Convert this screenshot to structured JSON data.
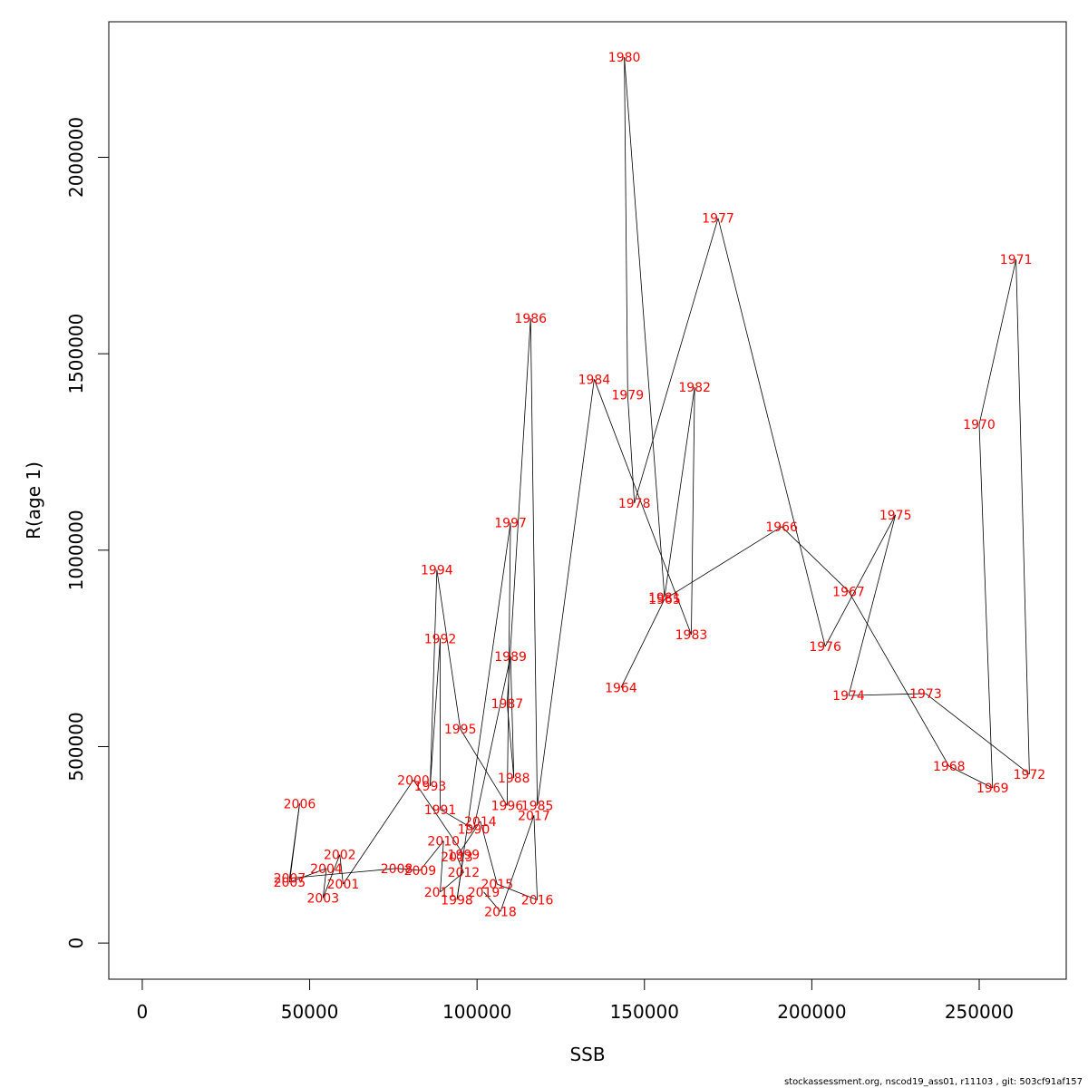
{
  "chart_data": {
    "type": "line",
    "xlabel": "SSB",
    "ylabel": "R(age 1)",
    "xlim": [
      -10000,
      276000
    ],
    "ylim": [
      -92000,
      2345000
    ],
    "x_ticks": [
      0,
      50000,
      100000,
      150000,
      200000,
      250000
    ],
    "y_ticks": [
      0,
      500000,
      1000000,
      1500000,
      2000000
    ],
    "point_label_color": "#ff0000",
    "line_color": "#000000",
    "points": [
      {
        "year": "1964",
        "x": 143000,
        "y": 650000
      },
      {
        "year": "1965",
        "x": 156000,
        "y": 875000
      },
      {
        "year": "1966",
        "x": 191000,
        "y": 1060000
      },
      {
        "year": "1967",
        "x": 211000,
        "y": 895000
      },
      {
        "year": "1968",
        "x": 241000,
        "y": 450000
      },
      {
        "year": "1969",
        "x": 254000,
        "y": 395000
      },
      {
        "year": "1970",
        "x": 250000,
        "y": 1320000
      },
      {
        "year": "1971",
        "x": 261000,
        "y": 1740000
      },
      {
        "year": "1972",
        "x": 265000,
        "y": 430000
      },
      {
        "year": "1973",
        "x": 234000,
        "y": 635000
      },
      {
        "year": "1974",
        "x": 211000,
        "y": 630000
      },
      {
        "year": "1975",
        "x": 225000,
        "y": 1090000
      },
      {
        "year": "1976",
        "x": 204000,
        "y": 755000
      },
      {
        "year": "1977",
        "x": 172000,
        "y": 1845000
      },
      {
        "year": "1978",
        "x": 147000,
        "y": 1120000
      },
      {
        "year": "1979",
        "x": 145000,
        "y": 1395000
      },
      {
        "year": "1980",
        "x": 144000,
        "y": 2255000
      },
      {
        "year": "1981",
        "x": 156000,
        "y": 880000
      },
      {
        "year": "1982",
        "x": 165000,
        "y": 1415000
      },
      {
        "year": "1983",
        "x": 164000,
        "y": 785000
      },
      {
        "year": "1984",
        "x": 135000,
        "y": 1435000
      },
      {
        "year": "1985",
        "x": 118000,
        "y": 350000
      },
      {
        "year": "1986",
        "x": 116000,
        "y": 1590000
      },
      {
        "year": "1987",
        "x": 109000,
        "y": 610000
      },
      {
        "year": "1988",
        "x": 111000,
        "y": 420000
      },
      {
        "year": "1989",
        "x": 110000,
        "y": 730000
      },
      {
        "year": "1990",
        "x": 99000,
        "y": 290000
      },
      {
        "year": "1991",
        "x": 89000,
        "y": 340000
      },
      {
        "year": "1992",
        "x": 89000,
        "y": 775000
      },
      {
        "year": "1993",
        "x": 86000,
        "y": 400000
      },
      {
        "year": "1994",
        "x": 88000,
        "y": 950000
      },
      {
        "year": "1995",
        "x": 95000,
        "y": 545000
      },
      {
        "year": "1996",
        "x": 109000,
        "y": 350000
      },
      {
        "year": "1997",
        "x": 110000,
        "y": 1070000
      },
      {
        "year": "1998",
        "x": 94000,
        "y": 110000
      },
      {
        "year": "1999",
        "x": 96000,
        "y": 225000
      },
      {
        "year": "2000",
        "x": 81000,
        "y": 415000
      },
      {
        "year": "2001",
        "x": 60000,
        "y": 150000
      },
      {
        "year": "2002",
        "x": 59000,
        "y": 225000
      },
      {
        "year": "2003",
        "x": 54000,
        "y": 115000
      },
      {
        "year": "2004",
        "x": 55000,
        "y": 190000
      },
      {
        "year": "2005",
        "x": 44000,
        "y": 155000
      },
      {
        "year": "2006",
        "x": 47000,
        "y": 355000
      },
      {
        "year": "2007",
        "x": 44000,
        "y": 165000
      },
      {
        "year": "2008",
        "x": 76000,
        "y": 190000
      },
      {
        "year": "2009",
        "x": 83000,
        "y": 185000
      },
      {
        "year": "2010",
        "x": 90000,
        "y": 260000
      },
      {
        "year": "2011",
        "x": 89000,
        "y": 130000
      },
      {
        "year": "2012",
        "x": 96000,
        "y": 180000
      },
      {
        "year": "2013",
        "x": 94000,
        "y": 220000
      },
      {
        "year": "2014",
        "x": 101000,
        "y": 310000
      },
      {
        "year": "2015",
        "x": 106000,
        "y": 150000
      },
      {
        "year": "2016",
        "x": 118000,
        "y": 110000
      },
      {
        "year": "2017",
        "x": 117000,
        "y": 325000
      },
      {
        "year": "2018",
        "x": 107000,
        "y": 80000
      },
      {
        "year": "2019",
        "x": 102000,
        "y": 130000
      }
    ]
  },
  "footer": "stockassessment.org, nscod19_ass01, r11103 , git: 503cf91af157"
}
